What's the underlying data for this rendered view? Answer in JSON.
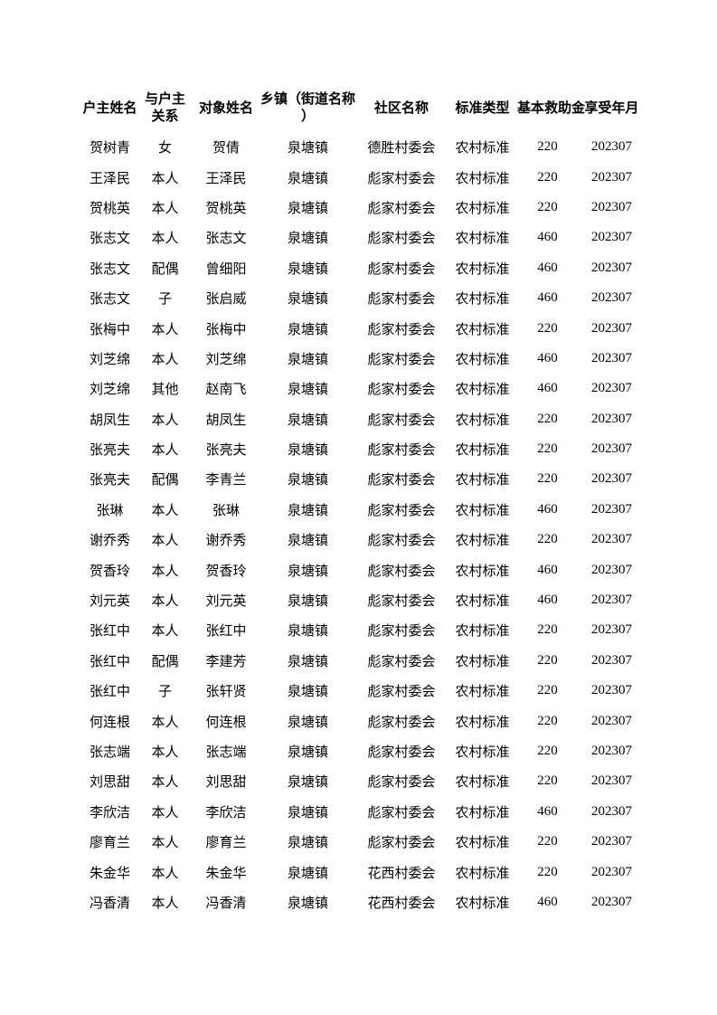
{
  "document": {
    "background_color": "#ffffff",
    "text_color": "#000000"
  },
  "table": {
    "headers": [
      "户主姓名",
      "与户主关系",
      "对象姓名",
      "乡镇（街道名称）",
      "社区名称",
      "标准类型",
      "基本救助金",
      "享受年月"
    ],
    "rows": [
      [
        "贺树青",
        "女",
        "贺倩",
        "泉塘镇",
        "德胜村委会",
        "农村标准",
        "220",
        "202307"
      ],
      [
        "王泽民",
        "本人",
        "王泽民",
        "泉塘镇",
        "彪家村委会",
        "农村标准",
        "220",
        "202307"
      ],
      [
        "贺桃英",
        "本人",
        "贺桃英",
        "泉塘镇",
        "彪家村委会",
        "农村标准",
        "220",
        "202307"
      ],
      [
        "张志文",
        "本人",
        "张志文",
        "泉塘镇",
        "彪家村委会",
        "农村标准",
        "460",
        "202307"
      ],
      [
        "张志文",
        "配偶",
        "曾细阳",
        "泉塘镇",
        "彪家村委会",
        "农村标准",
        "460",
        "202307"
      ],
      [
        "张志文",
        "子",
        "张启威",
        "泉塘镇",
        "彪家村委会",
        "农村标准",
        "460",
        "202307"
      ],
      [
        "张梅中",
        "本人",
        "张梅中",
        "泉塘镇",
        "彪家村委会",
        "农村标准",
        "220",
        "202307"
      ],
      [
        "刘芝绵",
        "本人",
        "刘芝绵",
        "泉塘镇",
        "彪家村委会",
        "农村标准",
        "460",
        "202307"
      ],
      [
        "刘芝绵",
        "其他",
        "赵南飞",
        "泉塘镇",
        "彪家村委会",
        "农村标准",
        "460",
        "202307"
      ],
      [
        "胡凤生",
        "本人",
        "胡凤生",
        "泉塘镇",
        "彪家村委会",
        "农村标准",
        "220",
        "202307"
      ],
      [
        "张亮夫",
        "本人",
        "张亮夫",
        "泉塘镇",
        "彪家村委会",
        "农村标准",
        "220",
        "202307"
      ],
      [
        "张亮夫",
        "配偶",
        "李青兰",
        "泉塘镇",
        "彪家村委会",
        "农村标准",
        "220",
        "202307"
      ],
      [
        "张琳",
        "本人",
        "张琳",
        "泉塘镇",
        "彪家村委会",
        "农村标准",
        "460",
        "202307"
      ],
      [
        "谢乔秀",
        "本人",
        "谢乔秀",
        "泉塘镇",
        "彪家村委会",
        "农村标准",
        "220",
        "202307"
      ],
      [
        "贺香玲",
        "本人",
        "贺香玲",
        "泉塘镇",
        "彪家村委会",
        "农村标准",
        "460",
        "202307"
      ],
      [
        "刘元英",
        "本人",
        "刘元英",
        "泉塘镇",
        "彪家村委会",
        "农村标准",
        "460",
        "202307"
      ],
      [
        "张红中",
        "本人",
        "张红中",
        "泉塘镇",
        "彪家村委会",
        "农村标准",
        "220",
        "202307"
      ],
      [
        "张红中",
        "配偶",
        "李建芳",
        "泉塘镇",
        "彪家村委会",
        "农村标准",
        "220",
        "202307"
      ],
      [
        "张红中",
        "子",
        "张轩贤",
        "泉塘镇",
        "彪家村委会",
        "农村标准",
        "220",
        "202307"
      ],
      [
        "何连根",
        "本人",
        "何连根",
        "泉塘镇",
        "彪家村委会",
        "农村标准",
        "220",
        "202307"
      ],
      [
        "张志端",
        "本人",
        "张志端",
        "泉塘镇",
        "彪家村委会",
        "农村标准",
        "220",
        "202307"
      ],
      [
        "刘思甜",
        "本人",
        "刘思甜",
        "泉塘镇",
        "彪家村委会",
        "农村标准",
        "220",
        "202307"
      ],
      [
        "李欣洁",
        "本人",
        "李欣洁",
        "泉塘镇",
        "彪家村委会",
        "农村标准",
        "460",
        "202307"
      ],
      [
        "廖育兰",
        "本人",
        "廖育兰",
        "泉塘镇",
        "彪家村委会",
        "农村标准",
        "220",
        "202307"
      ],
      [
        "朱金华",
        "本人",
        "朱金华",
        "泉塘镇",
        "花西村委会",
        "农村标准",
        "220",
        "202307"
      ],
      [
        "冯香清",
        "本人",
        "冯香清",
        "泉塘镇",
        "花西村委会",
        "农村标准",
        "460",
        "202307"
      ]
    ]
  }
}
